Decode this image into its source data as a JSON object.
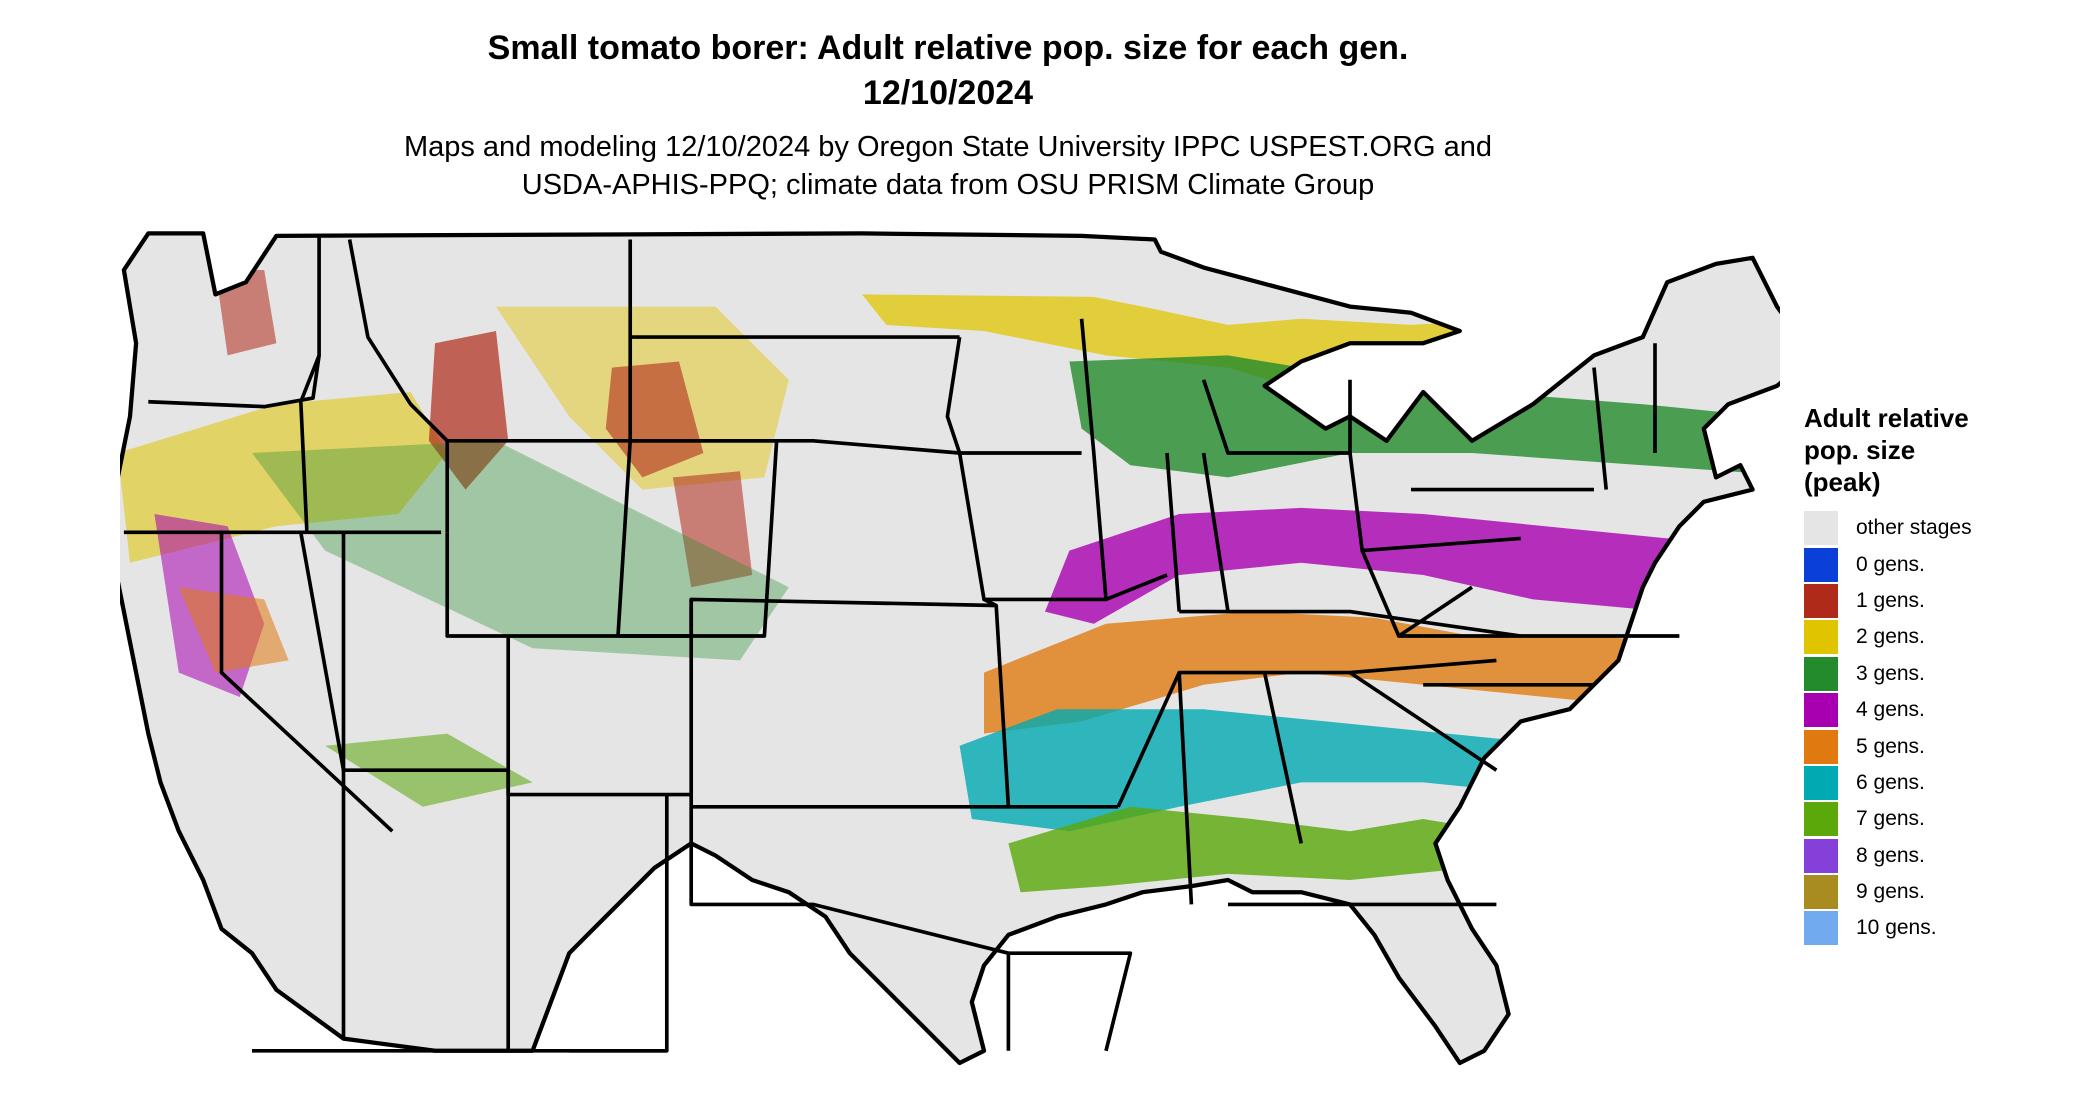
{
  "title_line1": "Small tomato borer: Adult relative pop. size for each gen.",
  "title_line2": "12/10/2024",
  "subtitle_line1": "Maps and modeling 12/10/2024 by Oregon State University IPPC USPEST.ORG and",
  "subtitle_line2": "USDA-APHIS-PPQ; climate data from OSU PRISM Climate Group",
  "legend": {
    "title": "Adult relative\npop. size\n(peak)",
    "items": [
      {
        "label": "other stages",
        "color": "#e5e5e5"
      },
      {
        "label": "0 gens.",
        "color": "#0a3fd8"
      },
      {
        "label": "1 gens.",
        "color": "#b02a1a"
      },
      {
        "label": "2 gens.",
        "color": "#e0c400"
      },
      {
        "label": "3 gens.",
        "color": "#238b2c"
      },
      {
        "label": "4 gens.",
        "color": "#a800b0"
      },
      {
        "label": "5 gens.",
        "color": "#e07a10"
      },
      {
        "label": "6 gens.",
        "color": "#00aab2"
      },
      {
        "label": "7 gens.",
        "color": "#5aa80a"
      },
      {
        "label": "8 gens.",
        "color": "#8440d8"
      },
      {
        "label": "9 gens.",
        "color": "#a88c20"
      },
      {
        "label": "10 gens.",
        "color": "#72aaf0"
      }
    ]
  },
  "map": {
    "region": "Contiguous United States",
    "background_color": "#e5e5e5",
    "border_color": "#000000"
  }
}
